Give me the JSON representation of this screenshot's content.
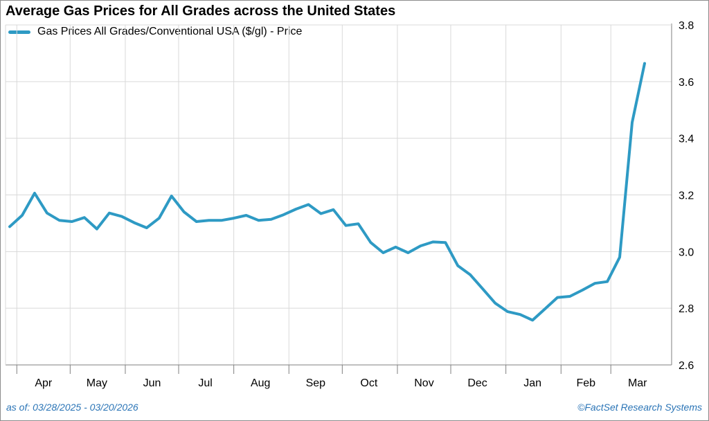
{
  "header": {
    "title": "Average Gas Prices for All Grades across the United States"
  },
  "legend": {
    "label": "Gas Prices All Grades/Conventional USA ($/gl) - Price"
  },
  "footer": {
    "as_of": "as of: 03/28/2025 - 03/20/2026",
    "source": "©FactSet Research Systems"
  },
  "colors": {
    "series": "#2e9ac4",
    "grid": "#d9d9d9",
    "axis": "#7f7f7f",
    "footer_text": "#2a74b6"
  },
  "chart_data": {
    "type": "line",
    "title": "Average Gas Prices for All Grades across the United States",
    "xlabel": "",
    "ylabel": "",
    "x_range": [
      "2025-03-28",
      "2026-03-20"
    ],
    "ylim": [
      2.6,
      3.8
    ],
    "y_ticks": [
      2.6,
      2.8,
      3.0,
      3.2,
      3.4,
      3.6,
      3.8
    ],
    "y_tick_labels": [
      "2.6",
      "2.8",
      "3.0",
      "3.2",
      "3.4",
      "3.6",
      "3.8"
    ],
    "y_axis_side": "right",
    "x_ticks": [
      "2025-04-01",
      "2025-05-01",
      "2025-06-01",
      "2025-07-01",
      "2025-08-01",
      "2025-09-01",
      "2025-10-01",
      "2025-11-01",
      "2025-12-01",
      "2026-01-01",
      "2026-02-01",
      "2026-03-01"
    ],
    "x_tick_labels": [
      "Apr",
      "May",
      "Jun",
      "Jul",
      "Aug",
      "Sep",
      "Oct",
      "Nov",
      "Dec",
      "Jan",
      "Feb",
      "Mar"
    ],
    "grid": true,
    "legend_position": "top-left",
    "series": [
      {
        "name": "Gas Prices All Grades/Conventional USA ($/gl) - Price",
        "color": "#2e9ac4",
        "x": [
          "2025-03-28",
          "2025-04-04",
          "2025-04-11",
          "2025-04-18",
          "2025-04-25",
          "2025-05-02",
          "2025-05-09",
          "2025-05-16",
          "2025-05-23",
          "2025-05-30",
          "2025-06-06",
          "2025-06-13",
          "2025-06-20",
          "2025-06-27",
          "2025-07-04",
          "2025-07-11",
          "2025-07-18",
          "2025-07-25",
          "2025-08-01",
          "2025-08-08",
          "2025-08-15",
          "2025-08-22",
          "2025-08-29",
          "2025-09-05",
          "2025-09-12",
          "2025-09-19",
          "2025-09-26",
          "2025-10-03",
          "2025-10-10",
          "2025-10-17",
          "2025-10-24",
          "2025-10-31",
          "2025-11-07",
          "2025-11-14",
          "2025-11-21",
          "2025-11-28",
          "2025-12-05",
          "2025-12-12",
          "2025-12-19",
          "2025-12-26",
          "2026-01-02",
          "2026-01-09",
          "2026-01-16",
          "2026-01-23",
          "2026-01-30",
          "2026-02-06",
          "2026-02-13",
          "2026-02-20",
          "2026-02-27",
          "2026-03-06",
          "2026-03-13",
          "2026-03-20"
        ],
        "y": [
          3.088,
          3.128,
          3.206,
          3.136,
          3.11,
          3.106,
          3.12,
          3.08,
          3.136,
          3.124,
          3.102,
          3.084,
          3.118,
          3.196,
          3.14,
          3.106,
          3.11,
          3.11,
          3.118,
          3.128,
          3.11,
          3.114,
          3.13,
          3.15,
          3.166,
          3.134,
          3.148,
          3.092,
          3.098,
          3.032,
          2.996,
          3.016,
          2.996,
          3.02,
          3.034,
          3.032,
          2.95,
          2.918,
          2.868,
          2.818,
          2.788,
          2.778,
          2.758,
          2.798,
          2.838,
          2.842,
          2.864,
          2.888,
          2.894,
          2.98,
          3.456,
          3.664
        ]
      }
    ]
  }
}
